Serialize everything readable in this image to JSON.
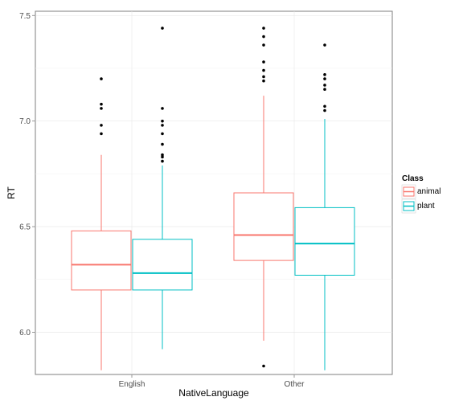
{
  "chart_data": {
    "type": "boxplot",
    "xlabel": "NativeLanguage",
    "ylabel": "RT",
    "categories": [
      "English",
      "Other"
    ],
    "ylim": [
      5.8,
      7.52
    ],
    "yticks": [
      6.0,
      6.5,
      7.0,
      7.5
    ],
    "ytick_labels": [
      "6.0",
      "6.5",
      "7.0",
      "7.5"
    ],
    "grid": true,
    "legend": {
      "title": "Class",
      "position": "right"
    },
    "series": [
      {
        "name": "animal",
        "color": "#F8766D",
        "boxes": [
          {
            "category": "English",
            "lower_whisker": 5.82,
            "q1": 6.2,
            "median": 6.32,
            "q3": 6.48,
            "upper_whisker": 6.84,
            "outliers": [
              6.94,
              6.98,
              7.06,
              7.08,
              7.2
            ]
          },
          {
            "category": "Other",
            "lower_whisker": 5.96,
            "q1": 6.34,
            "median": 6.46,
            "q3": 6.66,
            "upper_whisker": 7.12,
            "outliers": [
              5.84,
              7.19,
              7.21,
              7.24,
              7.28,
              7.36,
              7.4,
              7.44
            ]
          }
        ]
      },
      {
        "name": "plant",
        "color": "#00BFC4",
        "boxes": [
          {
            "category": "English",
            "lower_whisker": 5.92,
            "q1": 6.2,
            "median": 6.28,
            "q3": 6.44,
            "upper_whisker": 6.79,
            "outliers": [
              6.81,
              6.83,
              6.84,
              6.89,
              6.94,
              6.98,
              7.0,
              7.06,
              7.44
            ]
          },
          {
            "category": "Other",
            "lower_whisker": 5.82,
            "q1": 6.27,
            "median": 6.42,
            "q3": 6.59,
            "upper_whisker": 7.01,
            "outliers": [
              7.05,
              7.07,
              7.15,
              7.17,
              7.2,
              7.22,
              7.36
            ]
          }
        ]
      }
    ]
  }
}
